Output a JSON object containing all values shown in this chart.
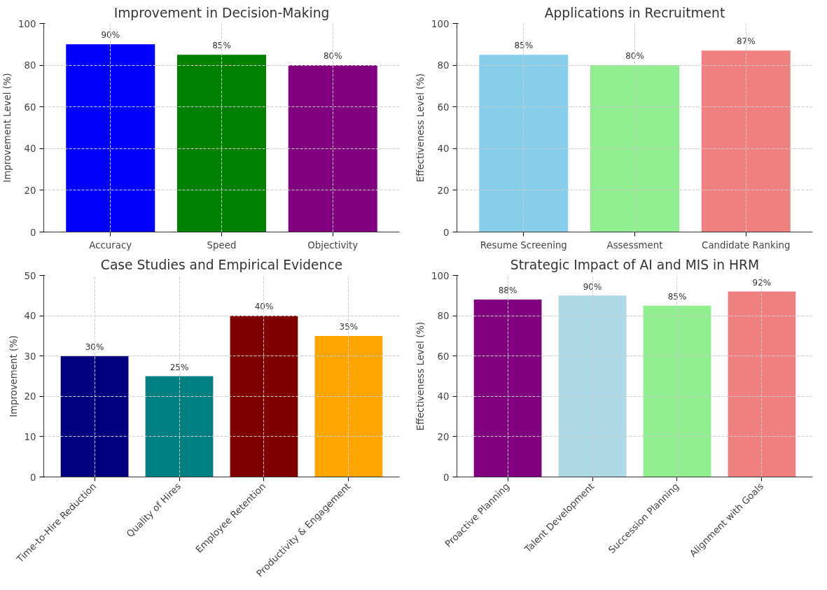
{
  "chart_data": [
    {
      "type": "bar",
      "title": "Improvement in Decision-Making",
      "ylabel": "Improvement Level (%)",
      "categories": [
        "Accuracy",
        "Speed",
        "Objectivity"
      ],
      "values": [
        90,
        85,
        80
      ],
      "colors": [
        "#0000ff",
        "#008000",
        "#800080"
      ],
      "value_labels": [
        "90%",
        "85%",
        "80%"
      ],
      "ylim": [
        0,
        100
      ],
      "yticks": [
        0,
        20,
        40,
        60,
        80,
        100
      ],
      "grid": true
    },
    {
      "type": "bar",
      "title": "Applications in Recruitment",
      "ylabel": "Effectiveness Level (%)",
      "categories": [
        "Resume Screening",
        "Assessment",
        "Candidate Ranking"
      ],
      "values": [
        85,
        80,
        87
      ],
      "colors": [
        "#87ceeb",
        "#90ee90",
        "#f08080"
      ],
      "value_labels": [
        "85%",
        "80%",
        "87%"
      ],
      "ylim": [
        0,
        100
      ],
      "yticks": [
        0,
        20,
        40,
        60,
        80,
        100
      ],
      "grid": true
    },
    {
      "type": "bar",
      "title": "Case Studies and Empirical Evidence",
      "ylabel": "Improvement (%)",
      "categories": [
        "Time-to-Hire Reduction",
        "Quality of Hires",
        "Employee Retention",
        "Productivity & Engagement"
      ],
      "values": [
        30,
        25,
        40,
        35
      ],
      "colors": [
        "#000080",
        "#008080",
        "#800000",
        "#ffa500"
      ],
      "value_labels": [
        "30%",
        "25%",
        "40%",
        "35%"
      ],
      "ylim": [
        0,
        50
      ],
      "yticks": [
        0,
        10,
        20,
        30,
        40,
        50
      ],
      "grid": true
    },
    {
      "type": "bar",
      "title": "Strategic Impact of AI and MIS in HRM",
      "ylabel": "Effectiveness Level (%)",
      "categories": [
        "Proactive Planning",
        "Talent Development",
        "Succession Planning",
        "Alignment with Goals"
      ],
      "values": [
        88,
        90,
        85,
        92
      ],
      "colors": [
        "#800080",
        "#add8e6",
        "#90ee90",
        "#f08080"
      ],
      "value_labels": [
        "88%",
        "90%",
        "85%",
        "92%"
      ],
      "ylim": [
        0,
        100
      ],
      "yticks": [
        0,
        20,
        40,
        60,
        80,
        100
      ],
      "grid": true
    }
  ]
}
